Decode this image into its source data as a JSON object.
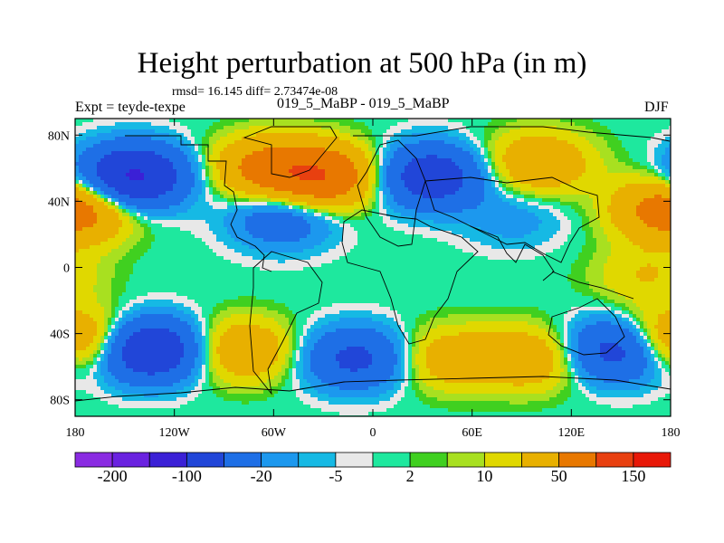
{
  "title": "Height perturbation at 500 hPa (in m)",
  "stats": "rmsd= 16.145 diff= 2.73474e-08",
  "left_label": "Expt = teyde-texpe",
  "center_label": "019_5_MaBP - 019_5_MaBP",
  "right_label": "DJF",
  "y_ticks": [
    "80N",
    "40N",
    "0",
    "40S",
    "80S"
  ],
  "x_ticks": [
    "180",
    "120W",
    "60W",
    "0",
    "60E",
    "120E",
    "180"
  ],
  "colorbar": {
    "colors": [
      "#8a2be2",
      "#6a22e0",
      "#3b20d6",
      "#2146d8",
      "#1e6fe6",
      "#1c98ee",
      "#16b9e4",
      "#e8e8e8",
      "#1ee89e",
      "#40d020",
      "#a8e020",
      "#e0d800",
      "#e8b000",
      "#e87800",
      "#e84010",
      "#e81808"
    ],
    "labels": [
      "-200",
      "-100",
      "-20",
      "-5",
      "2",
      "10",
      "50",
      "150"
    ]
  },
  "chart_data": {
    "type": "heatmap",
    "title": "Height perturbation at 500 hPa (in m)",
    "xlabel": "",
    "ylabel": "",
    "x_range": [
      -180,
      180
    ],
    "y_range": [
      -90,
      90
    ],
    "levels": [
      -200,
      -150,
      -100,
      -50,
      -20,
      -10,
      -5,
      -2,
      2,
      5,
      10,
      20,
      50,
      100,
      150
    ],
    "features": [
      {
        "lon": -145,
        "lat": 55,
        "value": -110
      },
      {
        "lon": -65,
        "lat": 60,
        "value": 60
      },
      {
        "lon": -30,
        "lat": 55,
        "value": 90
      },
      {
        "lon": -55,
        "lat": 30,
        "value": -40
      },
      {
        "lon": 35,
        "lat": 55,
        "value": -80
      },
      {
        "lon": 100,
        "lat": 63,
        "value": 45
      },
      {
        "lon": 175,
        "lat": 35,
        "value": 40
      },
      {
        "lon": -175,
        "lat": 35,
        "value": 40
      },
      {
        "lon": 85,
        "lat": 30,
        "value": -15
      },
      {
        "lon": -135,
        "lat": -50,
        "value": -100
      },
      {
        "lon": -80,
        "lat": -50,
        "value": 45
      },
      {
        "lon": -10,
        "lat": -55,
        "value": -60
      },
      {
        "lon": 45,
        "lat": -55,
        "value": 35
      },
      {
        "lon": 95,
        "lat": -55,
        "value": 40
      },
      {
        "lon": 150,
        "lat": -50,
        "value": -80
      },
      {
        "lon": -175,
        "lat": -45,
        "value": 35
      },
      {
        "lon": 175,
        "lat": -45,
        "value": 35
      },
      {
        "lon": 165,
        "lat": -5,
        "value": 20
      },
      {
        "lon": 0,
        "lat": 0,
        "value": 0
      }
    ]
  }
}
